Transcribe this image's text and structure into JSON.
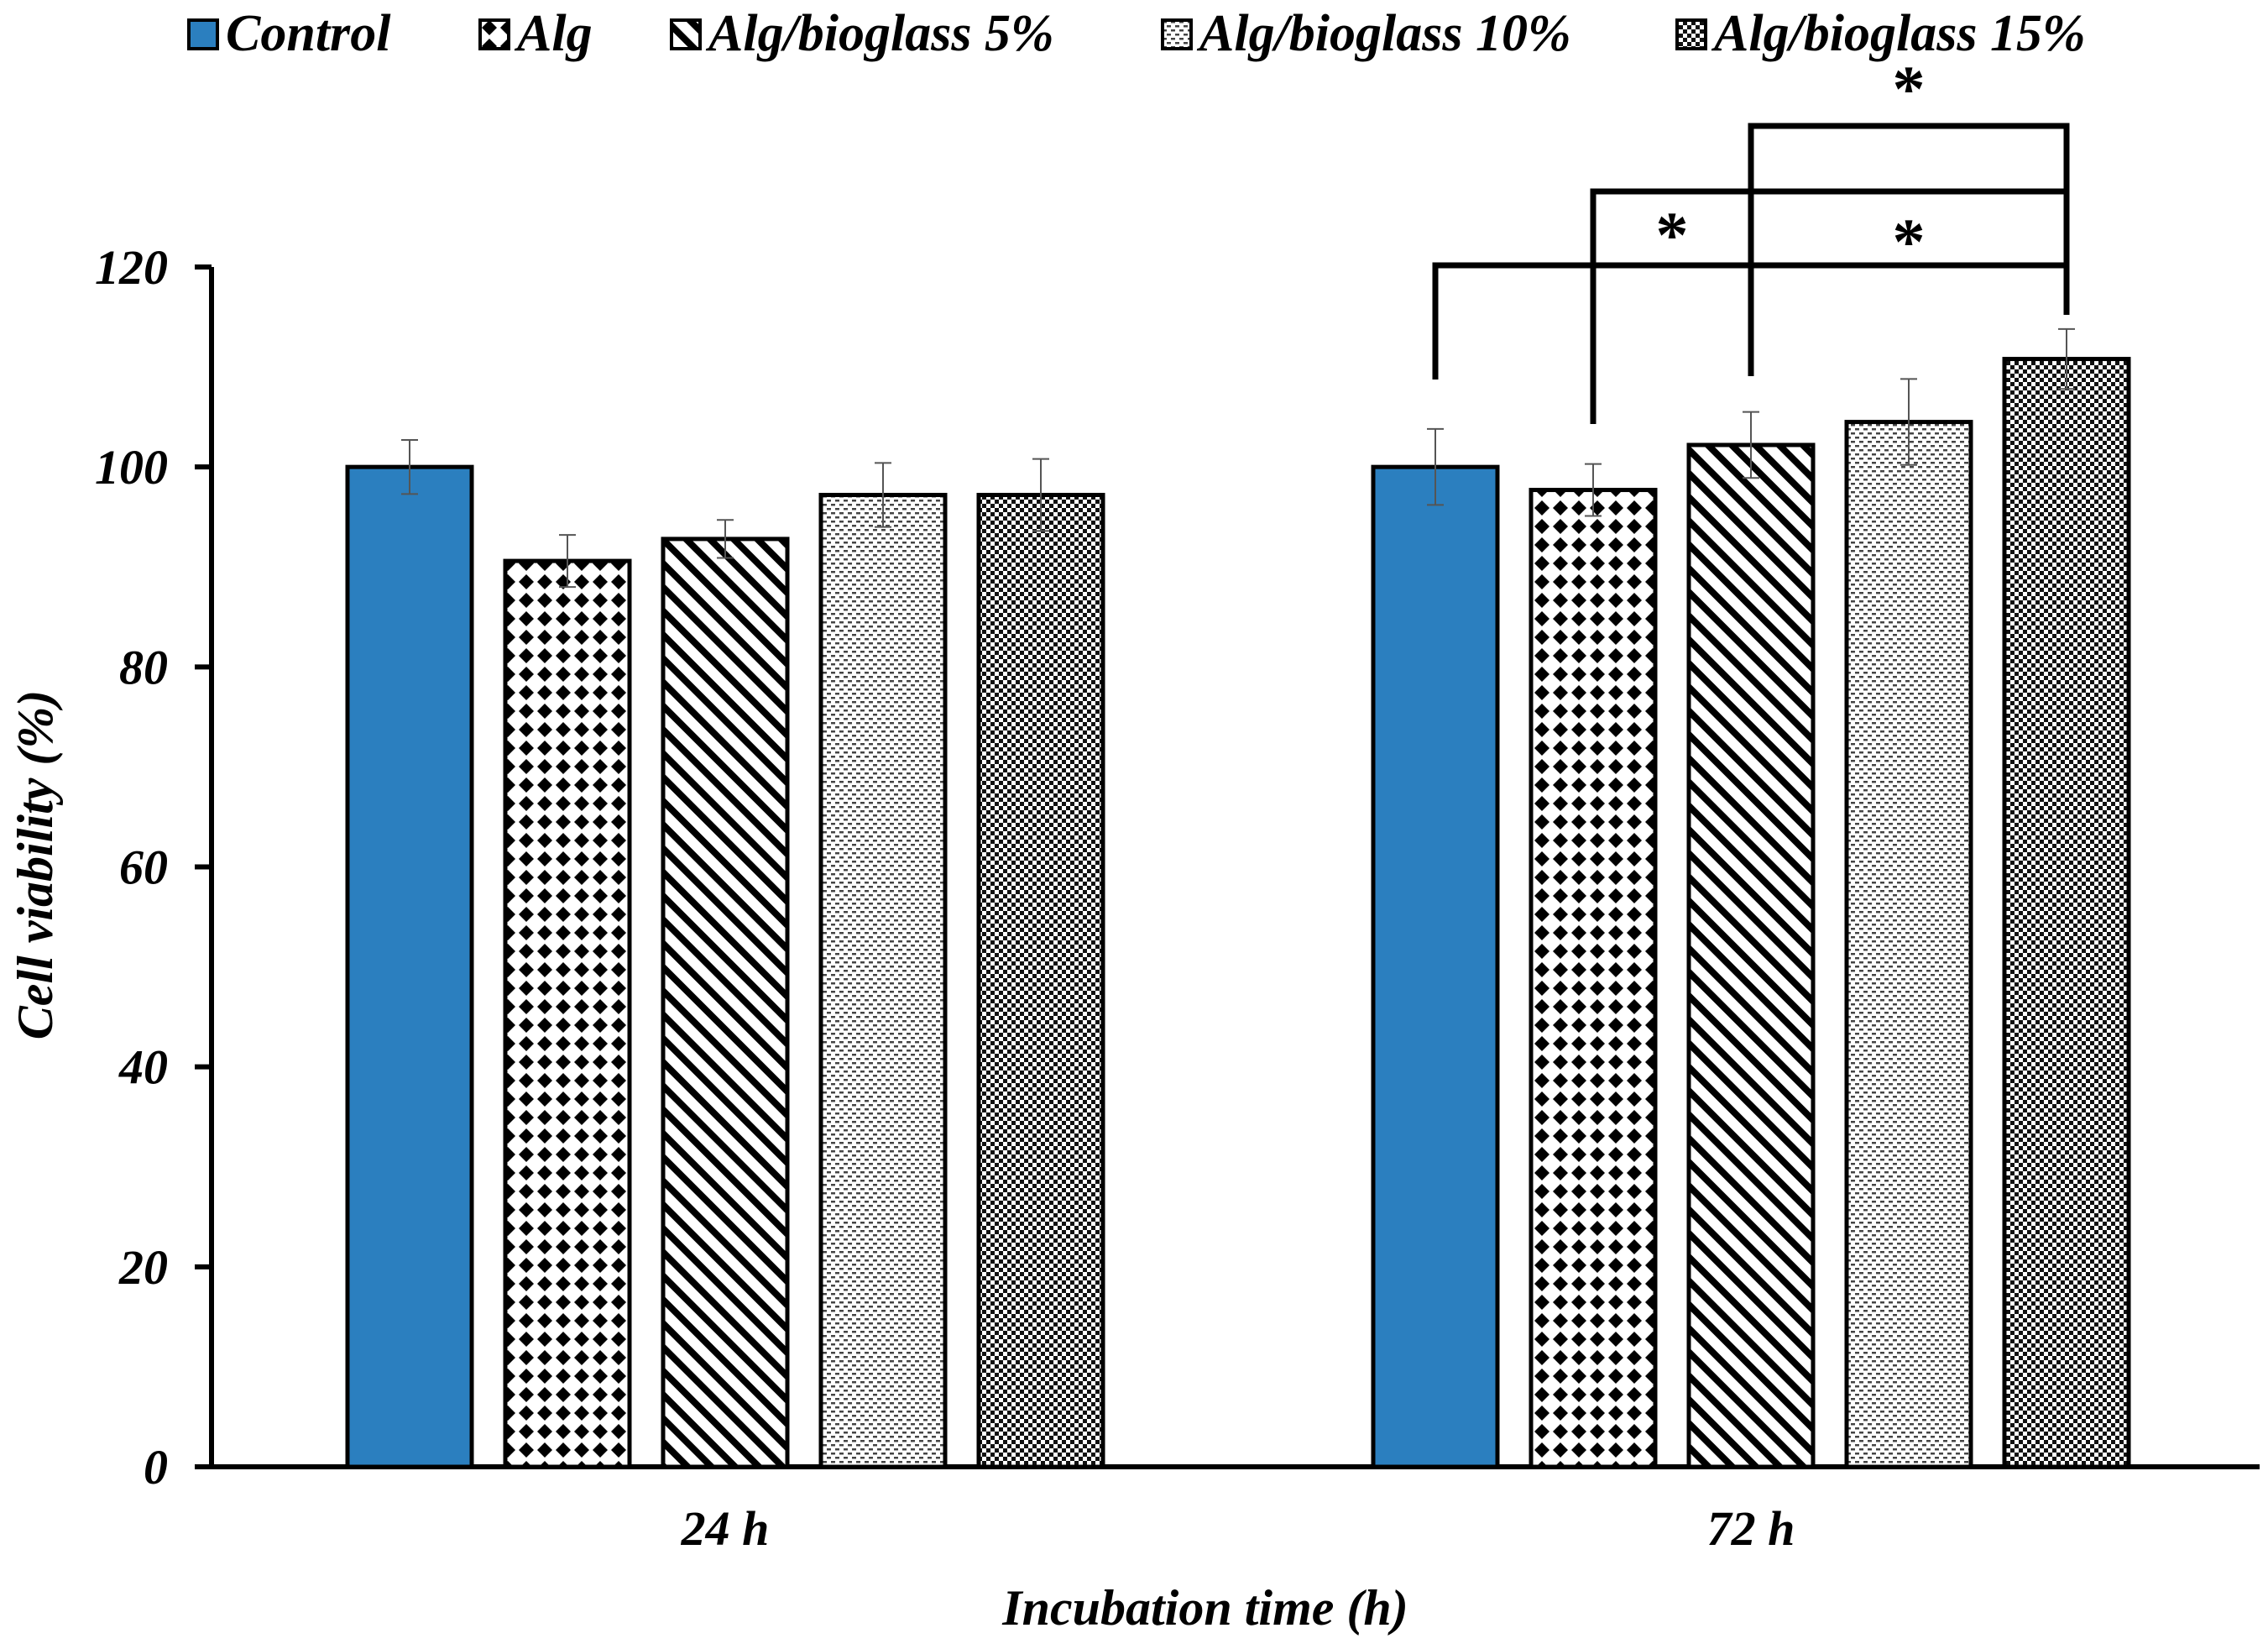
{
  "chart_data": {
    "type": "bar",
    "title": "",
    "xlabel": "Incubation time (h)",
    "ylabel": "Cell viability (%)",
    "ylim": [
      0,
      120
    ],
    "yticks": [
      "0",
      "20",
      "40",
      "60",
      "80",
      "100",
      "120"
    ],
    "categories": [
      "24 h",
      "72 h"
    ],
    "legend_position": "top",
    "grid": false,
    "series": [
      {
        "name": "Control",
        "pattern": "solid",
        "color": "#2b7fbf",
        "values": [
          100,
          100
        ],
        "errors": [
          2.7,
          3.8
        ]
      },
      {
        "name": "Alg",
        "pattern": "dots",
        "color": "#000000",
        "values": [
          90.6,
          97.7
        ],
        "errors": [
          2.6,
          2.6
        ]
      },
      {
        "name": "Alg/bioglass 5%",
        "pattern": "diagonal",
        "color": "#000000",
        "values": [
          92.8,
          102.2
        ],
        "errors": [
          1.9,
          3.3
        ]
      },
      {
        "name": "Alg/bioglass 10%",
        "pattern": "horizontal",
        "color": "#000000",
        "values": [
          97.2,
          104.5
        ],
        "errors": [
          3.2,
          4.3
        ]
      },
      {
        "name": "Alg/bioglass 15%",
        "pattern": "checker",
        "color": "#000000",
        "values": [
          97.2,
          110.8
        ],
        "errors": [
          3.6,
          3.0
        ]
      }
    ],
    "significance": [
      {
        "group": "72 h",
        "from": "Control",
        "to": "Alg/bioglass 15%",
        "label": "*"
      },
      {
        "group": "72 h",
        "from": "Alg",
        "to": "Alg/bioglass 15%",
        "label": "*"
      },
      {
        "group": "72 h",
        "from": "Alg/bioglass 5%",
        "to": "Alg/bioglass 15%",
        "label": "*"
      }
    ]
  }
}
